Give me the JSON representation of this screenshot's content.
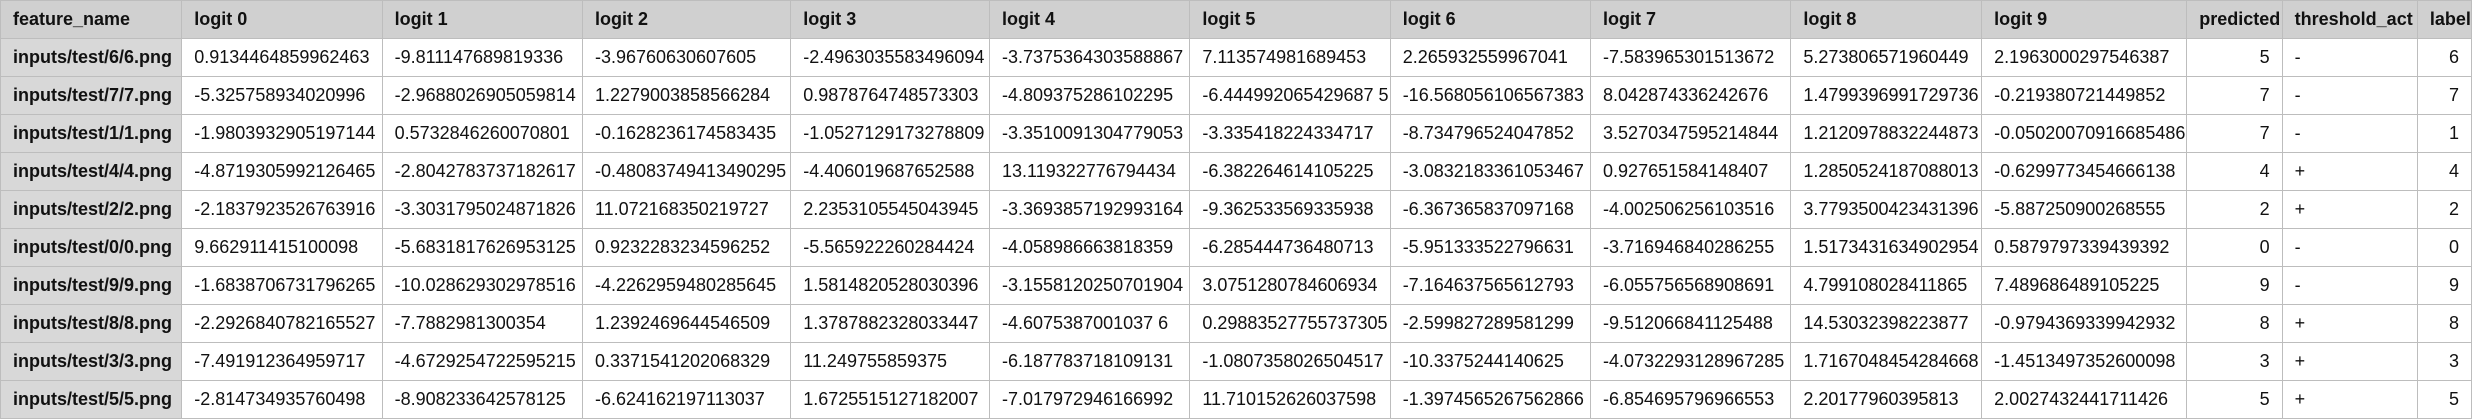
{
  "columns": [
    "feature_name",
    "logit 0",
    "logit 1",
    "logit 2",
    "logit 3",
    "logit 4",
    "logit 5",
    "logit 6",
    "logit 7",
    "logit 8",
    "logit 9",
    "predicted",
    "threshold_act",
    "label"
  ],
  "rows": [
    [
      "inputs/test/6/6.png",
      "0.9134464859962463",
      "-9.811147689819336",
      "-3.96760630607605",
      "-2.4963035583496094",
      "-3.7375364303588867",
      "7.113574981689453",
      "2.265932559967041",
      "-7.583965301513672",
      "5.273806571960449",
      "2.1963000297546387",
      "5",
      "-",
      "6"
    ],
    [
      "inputs/test/7/7.png",
      "-5.325758934020996",
      "-2.9688026905059814",
      "1.2279003858566284",
      "0.9878764748573303",
      "-4.809375286102295",
      "-6.444992065429687 5",
      "-16.568056106567383",
      "8.042874336242676",
      "1.4799396991729736",
      "-0.219380721449852",
      "7",
      "-",
      "7"
    ],
    [
      "inputs/test/1/1.png",
      "-1.9803932905197144",
      "0.5732846260070801",
      "-0.1628236174583435",
      "-1.0527129173278809",
      "-3.3510091304779053",
      "-3.335418224334717",
      "-8.734796524047852",
      "3.5270347595214844",
      "1.2120978832244873",
      "-0.05020070916685486",
      "7",
      "-",
      "1"
    ],
    [
      "inputs/test/4/4.png",
      "-4.8719305992126465",
      "-2.8042783737182617",
      "-0.48083749413490295",
      "-4.406019687652588",
      "13.119322776794434",
      "-6.382264614105225",
      "-3.0832183361053467",
      "0.927651584148407",
      "1.2850524187088013",
      "-0.6299773454666138",
      "4",
      "+",
      "4"
    ],
    [
      "inputs/test/2/2.png",
      "-2.1837923526763916",
      "-3.3031795024871826",
      "11.072168350219727",
      "2.2353105545043945",
      "-3.3693857192993164",
      "-9.362533569335938",
      "-6.367365837097168",
      "-4.002506256103516",
      "3.7793500423431396",
      "-5.887250900268555",
      "2",
      "+",
      "2"
    ],
    [
      "inputs/test/0/0.png",
      "9.662911415100098",
      "-5.6831817626953125",
      "0.9232283234596252",
      "-5.565922260284424",
      "-4.058986663818359",
      "-6.285444736480713",
      "-5.951333522796631",
      "-3.716946840286255",
      "1.5173431634902954",
      "0.5879797339439392",
      "0",
      "-",
      "0"
    ],
    [
      "inputs/test/9/9.png",
      "-1.6838706731796265",
      "-10.028629302978516",
      "-4.2262959480285645",
      "1.5814820528030396",
      "-3.1558120250701904",
      "3.0751280784606934",
      "-7.164637565612793",
      "-6.055756568908691",
      "4.799108028411865",
      "7.489686489105225",
      "9",
      "-",
      "9"
    ],
    [
      "inputs/test/8/8.png",
      "-2.2926840782165527",
      "-7.7882981300354",
      "1.2392469644546509",
      "1.3787882328033447",
      "-4.6075387001037 6",
      "0.29883527755737305",
      "-2.599827289581299",
      "-9.512066841125488",
      "14.53032398223877",
      "-0.9794369339942932",
      "8",
      "+",
      "8"
    ],
    [
      "inputs/test/3/3.png",
      "-7.491912364959717",
      "-4.6729254722595215",
      "0.3371541202068329",
      "11.249755859375",
      "-6.187783718109131",
      "-1.0807358026504517",
      "-10.3375244140625",
      "-4.0732293128967285",
      "1.7167048454284668",
      "-1.4513497352600098",
      "3",
      "+",
      "3"
    ],
    [
      "inputs/test/5/5.png",
      "-2.814734935760498",
      "-8.908233642578125",
      "-6.624162197113037",
      "1.6725515127182007",
      "-7.017972946166992",
      "11.710152626037598",
      "-1.3974565267562866",
      "-6.854695796966553",
      "2.20177960395813",
      "2.0027432441711426",
      "5",
      "+",
      "5"
    ]
  ]
}
